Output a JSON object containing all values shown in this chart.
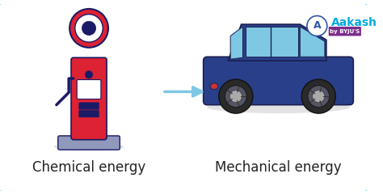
{
  "bg_color": "white",
  "border_color": "#7ecef4",
  "title_left": "Chemical energy",
  "title_right": "Mechanical energy",
  "arrow_color": "#7ec8e3",
  "text_color": "#222222",
  "font_size_labels": 12,
  "logo_text": "Aakash",
  "logo_subtext": "by BYJU'S",
  "logo_color": "#00aadd",
  "logo_circle_color": "#3355aa",
  "pump_body_color": "#dd2233",
  "pump_dark_color": "#1a1a66",
  "pump_base_color": "#9099bb",
  "car_body_color": "#2a3f8a",
  "car_dark_color": "#1a2050",
  "car_window_color": "#7ec8e3",
  "wheel_color": "#2a2a2a",
  "wheel_inner_color": "#aaaaaa"
}
